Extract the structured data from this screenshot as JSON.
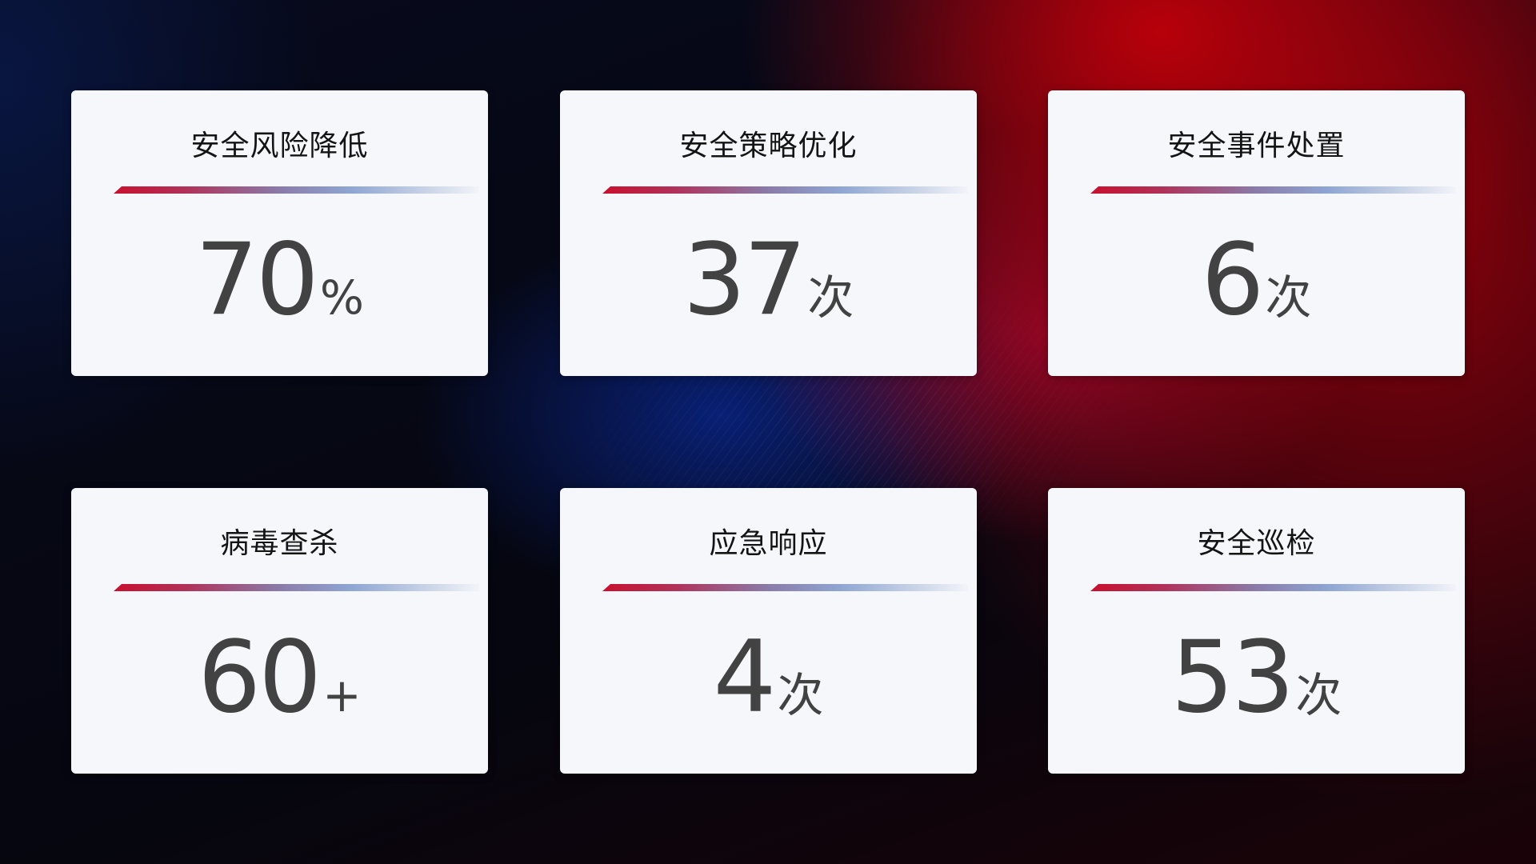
{
  "cards": [
    {
      "title": "安全风险降低",
      "value": "70",
      "unit": "%"
    },
    {
      "title": "安全策略优化",
      "value": "37",
      "unit": "次"
    },
    {
      "title": "安全事件处置",
      "value": "6",
      "unit": "次"
    },
    {
      "title": "病毒查杀",
      "value": "60",
      "unit": "+"
    },
    {
      "title": "应急响应",
      "value": "4",
      "unit": "次"
    },
    {
      "title": "安全巡检",
      "value": "53",
      "unit": "次"
    }
  ],
  "colors": {
    "accent_red": "#c8102e",
    "accent_blue": "#8fa6d2",
    "card_bg": "#f5f7fb",
    "value_text": "#424242"
  }
}
